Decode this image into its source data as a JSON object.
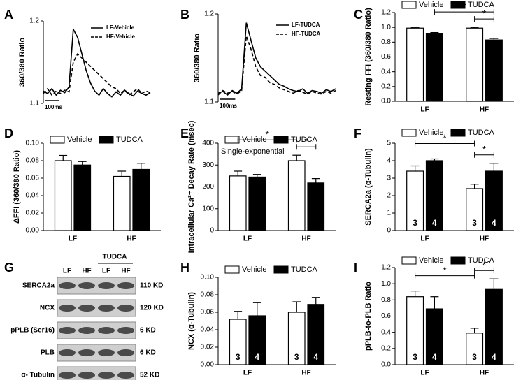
{
  "chart_data": [
    {
      "panel_label": "A",
      "type": "line",
      "y_label": "360/380 Ratio",
      "x": [
        0,
        30,
        60,
        90,
        120,
        150,
        180,
        210,
        240,
        270,
        300,
        330,
        360,
        390,
        420,
        450,
        480,
        510,
        540,
        570,
        600,
        630,
        660,
        690,
        720,
        750
      ],
      "xlim": [
        0,
        750
      ],
      "ylim": [
        1.1,
        1.2
      ],
      "yticks": [
        1.1,
        1.2
      ],
      "series": [
        {
          "name": "LF-Vehicle",
          "color": "#000000",
          "dash": false,
          "values": [
            1.115,
            1.112,
            1.118,
            1.11,
            1.116,
            1.113,
            1.12,
            1.19,
            1.18,
            1.16,
            1.14,
            1.125,
            1.115,
            1.11,
            1.118,
            1.112,
            1.108,
            1.114,
            1.11,
            1.116,
            1.112,
            1.109,
            1.115,
            1.112,
            1.11,
            1.113
          ]
        },
        {
          "name": "HF-Vehicle",
          "color": "#000000",
          "dash": true,
          "values": [
            1.112,
            1.118,
            1.11,
            1.115,
            1.112,
            1.116,
            1.114,
            1.15,
            1.16,
            1.155,
            1.15,
            1.145,
            1.14,
            1.135,
            1.13,
            1.125,
            1.12,
            1.118,
            1.112,
            1.116,
            1.11,
            1.114,
            1.118,
            1.112,
            1.115,
            1.113
          ]
        }
      ],
      "scale_bar": {
        "value": 100,
        "label": "100ms"
      }
    },
    {
      "panel_label": "B",
      "type": "line",
      "y_label": "360/380 Ratio",
      "x": [
        0,
        30,
        60,
        90,
        120,
        150,
        180,
        210,
        240,
        270,
        300,
        330,
        360,
        390,
        420,
        450,
        480,
        510,
        540,
        570,
        600,
        630,
        660,
        690,
        720,
        750
      ],
      "xlim": [
        0,
        750
      ],
      "ylim": [
        1.1,
        1.2
      ],
      "yticks": [
        1.1,
        1.2
      ],
      "series": [
        {
          "name": "LF-TUDCA",
          "color": "#000000",
          "dash": false,
          "values": [
            1.11,
            1.112,
            1.108,
            1.113,
            1.11,
            1.115,
            1.19,
            1.17,
            1.15,
            1.14,
            1.135,
            1.13,
            1.125,
            1.12,
            1.118,
            1.115,
            1.113,
            1.112,
            1.115,
            1.11,
            1.113,
            1.112,
            1.11,
            1.114,
            1.112,
            1.115
          ]
        },
        {
          "name": "HF-TUDCA",
          "color": "#000000",
          "dash": true,
          "values": [
            1.108,
            1.113,
            1.11,
            1.112,
            1.109,
            1.113,
            1.175,
            1.16,
            1.14,
            1.13,
            1.128,
            1.122,
            1.12,
            1.116,
            1.114,
            1.112,
            1.11,
            1.113,
            1.111,
            1.109,
            1.112,
            1.11,
            1.109,
            1.112,
            1.11,
            1.113
          ]
        }
      ],
      "scale_bar": {
        "value": 100,
        "label": "100ms"
      }
    },
    {
      "panel_label": "C",
      "type": "bar",
      "y_label": "Resting FFI (360/380 Ratio)",
      "categories": [
        "LF",
        "HF"
      ],
      "series": [
        {
          "name": "Vehicle",
          "color": "#ffffff",
          "values": [
            0.99,
            0.99
          ],
          "errors": [
            0.01,
            0.01
          ]
        },
        {
          "name": "TUDCA",
          "color": "#000000",
          "values": [
            0.92,
            0.83
          ],
          "errors": [
            0.01,
            0.02
          ]
        }
      ],
      "ylim": [
        0,
        1.2
      ],
      "yticks": [
        {
          "value": 0,
          "label": "0.0"
        },
        {
          "value": 0.2,
          "label": "0.2"
        },
        {
          "value": 0.4,
          "label": "0.4"
        },
        {
          "value": 0.6,
          "label": "0.6"
        },
        {
          "value": 0.8,
          "label": "0.8"
        },
        {
          "value": 1,
          "label": "1.0"
        },
        {
          "value": 1.2,
          "label": "1.2"
        }
      ],
      "significance": [
        {
          "label": "*",
          "from": [
            1,
            0
          ],
          "to": [
            1,
            1
          ]
        },
        {
          "label": "*",
          "from": [
            0,
            1
          ],
          "to": [
            1,
            1
          ]
        }
      ]
    },
    {
      "panel_label": "D",
      "type": "bar",
      "y_label": "ΔFFI (360/380 Ratio)",
      "categories": [
        "LF",
        "HF"
      ],
      "series": [
        {
          "name": "Vehicle",
          "color": "#ffffff",
          "values": [
            0.08,
            0.062
          ],
          "errors": [
            0.006,
            0.006
          ]
        },
        {
          "name": "TUDCA",
          "color": "#000000",
          "values": [
            0.075,
            0.07
          ],
          "errors": [
            0.004,
            0.007
          ]
        }
      ],
      "ylim": [
        0,
        0.1
      ],
      "yticks": [
        {
          "value": 0,
          "label": "0.00"
        },
        {
          "value": 0.02,
          "label": "0.02"
        },
        {
          "value": 0.04,
          "label": "0.04"
        },
        {
          "value": 0.06,
          "label": "0.06"
        },
        {
          "value": 0.08,
          "label": "0.08"
        },
        {
          "value": 0.1,
          "label": "0.10"
        }
      ]
    },
    {
      "panel_label": "E",
      "type": "bar",
      "y_label": "Intracellular Ca²⁺ Decay Rate (msec)",
      "subtitle": "Single-exponential",
      "categories": [
        "LF",
        "HF"
      ],
      "series": [
        {
          "name": "Vehicle",
          "color": "#ffffff",
          "values": [
            250,
            320
          ],
          "errors": [
            22,
            25
          ]
        },
        {
          "name": "TUDCA",
          "color": "#000000",
          "values": [
            245,
            218
          ],
          "errors": [
            12,
            20
          ]
        }
      ],
      "ylim": [
        0,
        400
      ],
      "yticks": [
        0,
        100,
        200,
        300,
        400
      ],
      "significance": [
        {
          "label": "*",
          "from": [
            0,
            0
          ],
          "to": [
            0,
            1
          ]
        },
        {
          "label": "*",
          "from": [
            0,
            1
          ],
          "to": [
            1,
            1
          ]
        }
      ]
    },
    {
      "panel_label": "F",
      "type": "bar",
      "y_label": "SERCA2a (α-Tubulin)",
      "categories": [
        "LF",
        "HF"
      ],
      "series": [
        {
          "name": "Vehicle",
          "color": "#ffffff",
          "values": [
            3.4,
            2.4
          ],
          "errors": [
            0.3,
            0.25
          ],
          "n_labels": [
            "3",
            "3"
          ]
        },
        {
          "name": "TUDCA",
          "color": "#000000",
          "values": [
            4.0,
            3.4
          ],
          "errors": [
            0.1,
            0.45
          ],
          "n_labels": [
            "4",
            "4"
          ]
        }
      ],
      "ylim": [
        0,
        5
      ],
      "yticks": [
        0,
        1,
        2,
        3,
        4,
        5
      ],
      "significance": [
        {
          "label": "*",
          "from": [
            0,
            0
          ],
          "to": [
            0,
            1
          ]
        },
        {
          "label": "*",
          "from": [
            0,
            1
          ],
          "to": [
            1,
            1
          ]
        }
      ]
    },
    {
      "panel_label": "H",
      "type": "bar",
      "y_label": "NCX (α-Tubulin)",
      "categories": [
        "LF",
        "HF"
      ],
      "series": [
        {
          "name": "Vehicle",
          "color": "#ffffff",
          "values": [
            0.052,
            0.06
          ],
          "errors": [
            0.009,
            0.012
          ],
          "n_labels": [
            "3",
            "3"
          ]
        },
        {
          "name": "TUDCA",
          "color": "#000000",
          "values": [
            0.056,
            0.069
          ],
          "errors": [
            0.015,
            0.008
          ],
          "n_labels": [
            "4",
            "4"
          ]
        }
      ],
      "ylim": [
        0,
        0.1
      ],
      "yticks": [
        {
          "value": 0,
          "label": "0.00"
        },
        {
          "value": 0.02,
          "label": "0.02"
        },
        {
          "value": 0.04,
          "label": "0.04"
        },
        {
          "value": 0.06,
          "label": "0.06"
        },
        {
          "value": 0.08,
          "label": "0.08"
        },
        {
          "value": 0.1,
          "label": "0.10"
        }
      ]
    },
    {
      "panel_label": "I",
      "type": "bar",
      "y_label": "pPLB-to-PLB Ratio",
      "categories": [
        "LF",
        "HF"
      ],
      "series": [
        {
          "name": "Vehicle",
          "color": "#ffffff",
          "values": [
            0.84,
            0.39
          ],
          "errors": [
            0.07,
            0.06
          ],
          "n_labels": [
            "3",
            "3"
          ]
        },
        {
          "name": "TUDCA",
          "color": "#000000",
          "values": [
            0.69,
            0.93
          ],
          "errors": [
            0.15,
            0.13
          ],
          "n_labels": [
            "4",
            "4"
          ]
        }
      ],
      "ylim": [
        0,
        1.2
      ],
      "yticks": [
        {
          "value": 0,
          "label": "0.0"
        },
        {
          "value": 0.2,
          "label": "0.2"
        },
        {
          "value": 0.4,
          "label": "0.4"
        },
        {
          "value": 0.6,
          "label": "0.6"
        },
        {
          "value": 0.8,
          "label": "0.8"
        },
        {
          "value": 1,
          "label": "1.0"
        },
        {
          "value": 1.2,
          "label": "1.2"
        }
      ],
      "significance": [
        {
          "label": "*",
          "from": [
            0,
            0
          ],
          "to": [
            0,
            1
          ]
        },
        {
          "label": "*",
          "from": [
            0,
            1
          ],
          "to": [
            1,
            1
          ]
        }
      ]
    }
  ],
  "blot": {
    "panel_label": "G",
    "group_label": "TUDCA",
    "lanes": [
      "LF",
      "HF",
      "LF",
      "HF"
    ],
    "rows": [
      {
        "protein": "SERCA2a",
        "size": "110 KD"
      },
      {
        "protein": "NCX",
        "size": "120 KD"
      },
      {
        "protein": "pPLB (Ser16)",
        "size": "6 KD"
      },
      {
        "protein": "PLB",
        "size": "6 KD"
      },
      {
        "protein": "α- Tubulin",
        "size": "52 KD"
      }
    ]
  }
}
